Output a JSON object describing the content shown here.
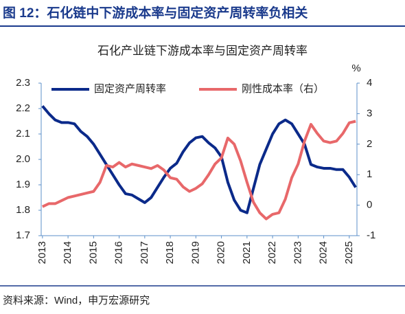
{
  "header": {
    "title": "图 12：石化链中下游成本率与固定资产周转率负相关"
  },
  "chart_data": {
    "type": "line",
    "title": "石化产业链下游成本率与固定资产周转率",
    "y2label": "%",
    "x": [
      2013,
      2013.25,
      2013.5,
      2013.75,
      2014,
      2014.25,
      2014.5,
      2014.75,
      2015,
      2015.25,
      2015.5,
      2015.75,
      2016,
      2016.25,
      2016.5,
      2016.75,
      2017,
      2017.25,
      2017.5,
      2017.75,
      2018,
      2018.25,
      2018.5,
      2018.75,
      2019,
      2019.25,
      2019.5,
      2019.75,
      2020,
      2020.25,
      2020.5,
      2020.75,
      2021,
      2021.25,
      2021.5,
      2021.75,
      2022,
      2022.25,
      2022.5,
      2022.75,
      2023,
      2023.25,
      2023.5,
      2023.75,
      2024,
      2024.25,
      2024.5,
      2024.75,
      2025,
      2025.25
    ],
    "series": [
      {
        "name": "固定资产周转率",
        "color": "#0b2a8a",
        "values": [
          2.21,
          2.18,
          2.155,
          2.145,
          2.145,
          2.14,
          2.11,
          2.09,
          2.06,
          2.02,
          1.98,
          1.94,
          1.9,
          1.865,
          1.86,
          1.845,
          1.83,
          1.85,
          1.89,
          1.93,
          1.965,
          1.985,
          2.03,
          2.065,
          2.085,
          2.09,
          2.065,
          2.045,
          2.01,
          1.91,
          1.84,
          1.8,
          1.79,
          1.885,
          1.98,
          2.04,
          2.1,
          2.14,
          2.155,
          2.14,
          2.1,
          2.06,
          1.98,
          1.97,
          1.965,
          1.965,
          1.96,
          1.96,
          1.93,
          1.89
        ]
      },
      {
        "name": "刚性成本率（右）",
        "color": "#e8686a",
        "axis": "y2",
        "values": [
          -0.05,
          0.05,
          0.05,
          0.15,
          0.25,
          0.3,
          0.35,
          0.4,
          0.45,
          0.75,
          1.3,
          1.25,
          1.4,
          1.25,
          1.35,
          1.3,
          1.25,
          1.2,
          1.3,
          1.15,
          0.9,
          0.85,
          0.6,
          0.45,
          0.55,
          0.7,
          1.0,
          1.35,
          1.55,
          2.2,
          2.0,
          1.45,
          0.75,
          0.1,
          -0.25,
          -0.45,
          -0.3,
          -0.25,
          0.2,
          0.9,
          1.35,
          2.1,
          2.65,
          2.35,
          2.1,
          2.05,
          2.1,
          2.35,
          2.7,
          2.75
        ]
      }
    ],
    "xlim": [
      2012.95,
      2025.3
    ],
    "xticks": [
      2013,
      2014,
      2015,
      2016,
      2017,
      2018,
      2019,
      2020,
      2021,
      2022,
      2023,
      2024,
      2025
    ],
    "ylim": [
      1.7,
      2.3
    ],
    "yticks": [
      1.7,
      1.8,
      1.9,
      {
        "value": 2,
        "label": "2.0"
      },
      2.1,
      2.2,
      2.3
    ],
    "y2lim": [
      -1,
      4
    ],
    "y2ticks": [
      -1,
      0,
      1,
      2,
      3,
      4
    ],
    "grid": false
  },
  "footer": {
    "source": "资料来源：Wind，申万宏源研究"
  }
}
